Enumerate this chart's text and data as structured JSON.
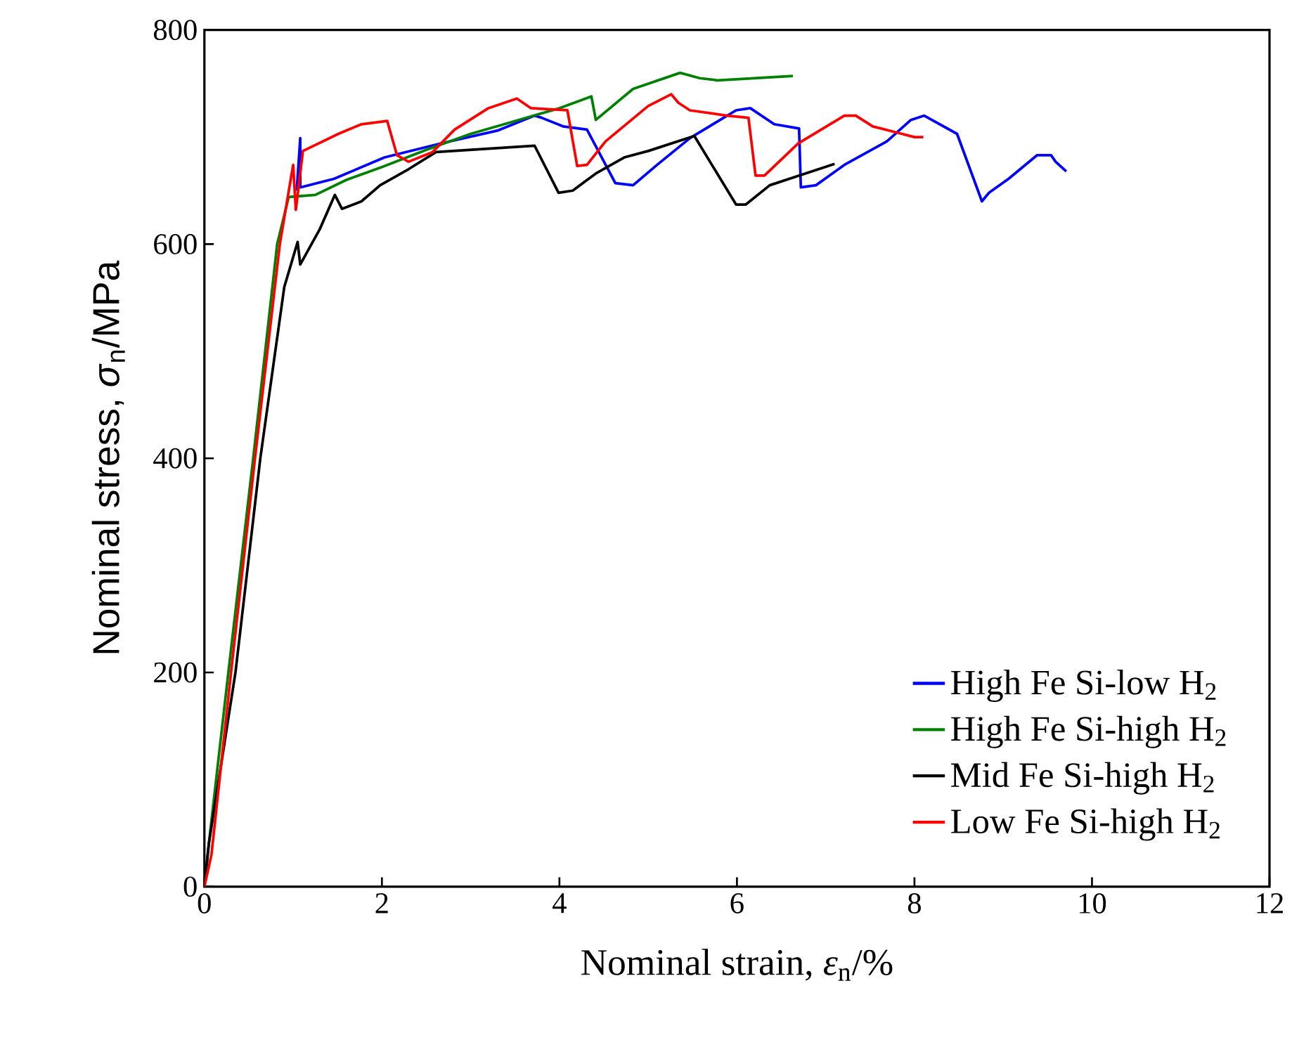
{
  "chart_data": {
    "type": "line",
    "xlabel": "Nominal strain, *ε*$_{n}$/%",
    "ylabel": "Nominal stress, *σ*$_{n}$/MPa",
    "xlim": [
      0,
      12
    ],
    "ylim": [
      0,
      800
    ],
    "xticks": [
      0,
      2,
      4,
      6,
      8,
      10,
      12
    ],
    "yticks": [
      0,
      200,
      400,
      600,
      800
    ],
    "grid": false,
    "legend": "bottom right",
    "marker": "none",
    "line_style": "solid",
    "series": [
      {
        "name": "High Fe Si-low H$_{2}$",
        "color": "#0000ff",
        "x": [
          1.04,
          1.08,
          1.08,
          1.46,
          2.03,
          2.66,
          3.3,
          3.72,
          3.8,
          4.04,
          4.31,
          4.63,
          4.83,
          5.1,
          5.47,
          5.99,
          6.15,
          6.42,
          6.7,
          6.72,
          6.89,
          7.21,
          7.69,
          7.96,
          8.11,
          8.48,
          8.76,
          8.84,
          9.06,
          9.38,
          9.54,
          9.59,
          9.71
        ],
        "values": [
          650,
          699,
          653,
          661,
          681,
          694,
          706,
          720,
          718,
          710,
          707,
          657,
          655,
          674,
          699,
          725,
          727,
          712,
          708,
          653,
          655,
          674,
          696,
          716,
          720,
          703,
          640,
          648,
          661,
          683,
          683,
          677,
          668
        ]
      },
      {
        "name": "High Fe Si-high H$_{2}$",
        "color": "#008000",
        "x": [
          0,
          0.05,
          0.27,
          0.55,
          0.82,
          0.95,
          1.25,
          1.6,
          2.0,
          2.5,
          3.0,
          3.5,
          4.0,
          4.36,
          4.41,
          4.83,
          5.36,
          5.58,
          5.78,
          6.63
        ],
        "values": [
          0,
          40,
          200,
          400,
          600,
          644,
          646,
          660,
          672,
          688,
          703,
          715,
          727,
          738,
          716,
          745,
          760,
          755,
          753,
          757
        ]
      },
      {
        "name": "Mid Fe Si-high H$_{2}$",
        "color": "#000000",
        "x": [
          0,
          0.05,
          0.35,
          0.63,
          0.9,
          1.05,
          1.08,
          1.3,
          1.47,
          1.55,
          1.77,
          1.98,
          2.3,
          2.61,
          3.72,
          3.99,
          4.15,
          4.41,
          4.73,
          5.0,
          5.52,
          5.99,
          6.1,
          6.37,
          7.1
        ],
        "values": [
          0,
          40,
          200,
          400,
          560,
          602,
          581,
          614,
          646,
          633,
          640,
          655,
          670,
          686,
          692,
          648,
          650,
          666,
          681,
          687,
          701,
          637,
          637,
          655,
          675
        ]
      },
      {
        "name": "Low Fe Si-high H$_{2}$",
        "color": "#ff0000",
        "x": [
          0,
          0.08,
          0.3,
          0.57,
          0.85,
          1.0,
          1.03,
          1.11,
          1.51,
          1.77,
          2.06,
          2.17,
          2.3,
          2.57,
          2.82,
          3.2,
          3.52,
          3.68,
          4.09,
          4.2,
          4.31,
          4.52,
          5.0,
          5.26,
          5.34,
          5.47,
          5.89,
          6.13,
          6.21,
          6.31,
          6.69,
          7.21,
          7.34,
          7.53,
          8.0,
          8.1
        ],
        "values": [
          0,
          30,
          200,
          400,
          600,
          674,
          632,
          687,
          703,
          712,
          715,
          683,
          677,
          686,
          707,
          727,
          736,
          727,
          725,
          673,
          674,
          696,
          729,
          740,
          732,
          725,
          720,
          718,
          664,
          664,
          694,
          720,
          720,
          710,
          700,
          700
        ]
      }
    ]
  }
}
